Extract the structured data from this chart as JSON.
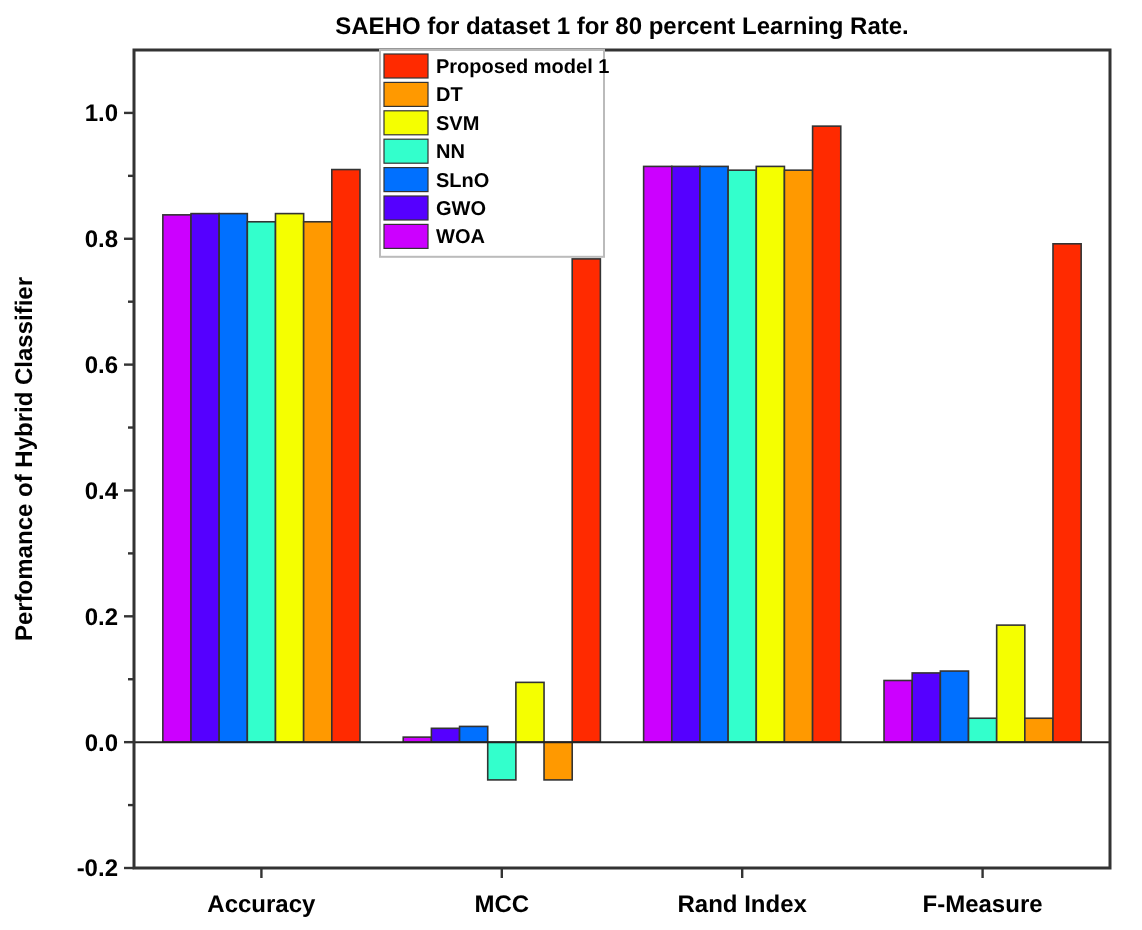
{
  "chart_data": {
    "type": "bar",
    "title": "SAEHO for dataset 1 for 80 percent Learning Rate.",
    "ylabel": "Perfomance of Hybrid Classifier",
    "categories": [
      "Accuracy",
      "MCC",
      "Rand Index",
      "F-Measure"
    ],
    "series": [
      {
        "name": "WOA",
        "color": "#cc00ff",
        "values": [
          0.838,
          0.008,
          0.915,
          0.098
        ]
      },
      {
        "name": "GWO",
        "color": "#5500ff",
        "values": [
          0.84,
          0.022,
          0.915,
          0.11
        ]
      },
      {
        "name": "SLnO",
        "color": "#0070ff",
        "values": [
          0.84,
          0.025,
          0.915,
          0.113
        ]
      },
      {
        "name": "NN",
        "color": "#33ffcc",
        "values": [
          0.827,
          -0.06,
          0.909,
          0.038
        ]
      },
      {
        "name": "SVM",
        "color": "#f5ff00",
        "values": [
          0.84,
          0.095,
          0.915,
          0.186
        ]
      },
      {
        "name": "DT",
        "color": "#ff9900",
        "values": [
          0.827,
          -0.06,
          0.909,
          0.038
        ]
      },
      {
        "name": "Proposed model 1",
        "color": "#ff2a00",
        "values": [
          0.91,
          0.768,
          0.979,
          0.792
        ]
      }
    ],
    "ylim": [
      -0.2,
      1.1
    ],
    "yticks": [
      -0.2,
      {
        "value": -0.1,
        "label": null
      },
      {
        "value": 0,
        "label": "0.0"
      },
      {
        "value": 0.1,
        "label": null
      },
      0.2,
      {
        "value": 0.3,
        "label": null
      },
      0.4,
      {
        "value": 0.5,
        "label": null
      },
      0.6,
      {
        "value": 0.7,
        "label": null
      },
      0.8,
      {
        "value": 0.9,
        "label": null
      },
      {
        "value": 1,
        "label": "1.0"
      }
    ],
    "legend": "top left"
  }
}
